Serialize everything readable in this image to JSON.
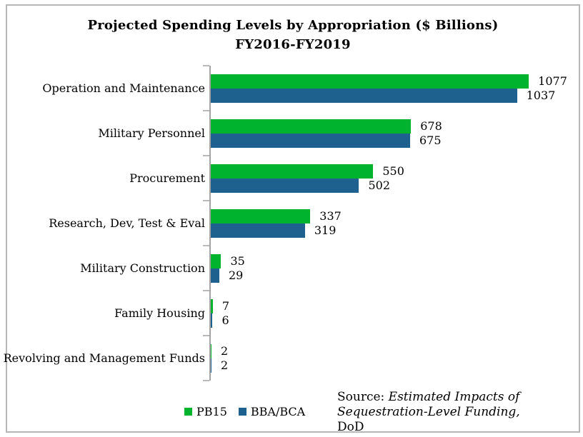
{
  "title": {
    "line1": "Projected Spending Levels by Appropriation ($ Billions)",
    "line2": "FY2016-FY2019"
  },
  "chart_data": {
    "type": "bar",
    "orientation": "horizontal",
    "title": "Projected Spending Levels by Appropriation ($ Billions) FY2016-FY2019",
    "categories": [
      "Operation and Maintenance",
      "Military Personnel",
      "Procurement",
      "Research, Dev, Test & Eval",
      "Military Construction",
      "Family Housing",
      "Revolving and Management Funds"
    ],
    "series": [
      {
        "name": "PB15",
        "color": "#00b32e",
        "values": [
          1077,
          678,
          550,
          337,
          35,
          7,
          2
        ]
      },
      {
        "name": "BBA/BCA",
        "color": "#1f618e",
        "values": [
          1037,
          675,
          502,
          319,
          29,
          6,
          2
        ]
      }
    ],
    "xlim": [
      0,
      1200
    ],
    "grid": false,
    "value_labels": true,
    "legend_position": "bottom"
  },
  "legend": {
    "items": [
      {
        "label": "PB15",
        "color": "#00b32e"
      },
      {
        "label": "BBA/BCA",
        "color": "#1f618e"
      }
    ]
  },
  "source": {
    "label": "Source:",
    "work_italic": "Estimated Impacts of Sequestration-Level Funding,",
    "publisher": "DoD"
  },
  "colors": {
    "axis": "#a3a3a3",
    "tick": "#b9b9b9",
    "border": "#b7b7b7",
    "text": "#000000"
  }
}
